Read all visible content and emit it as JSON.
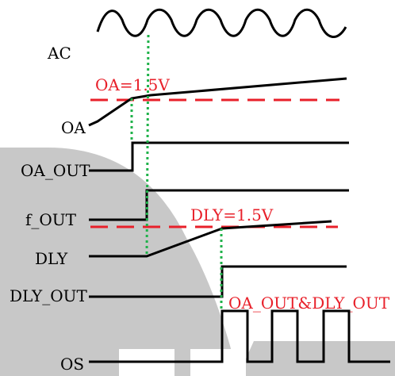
{
  "colors": {
    "background": "#ffffff",
    "backdrop": "#c8c8c8",
    "signal": "#000000",
    "threshold": "#e8202a",
    "threshold_text": "#e8202a",
    "marker": "#1fb24a"
  },
  "signals": {
    "ac": "AC",
    "oa": "OA",
    "oa_out": "OA_OUT",
    "f_out": "f_OUT",
    "dly": "DLY",
    "dly_out": "DLY_OUT",
    "os": "OS"
  },
  "annotations": {
    "oa_threshold": "OA=1.5V",
    "dly_threshold": "DLY=1.5V",
    "os_logic": "OA_OUT&DLY_OUT"
  }
}
